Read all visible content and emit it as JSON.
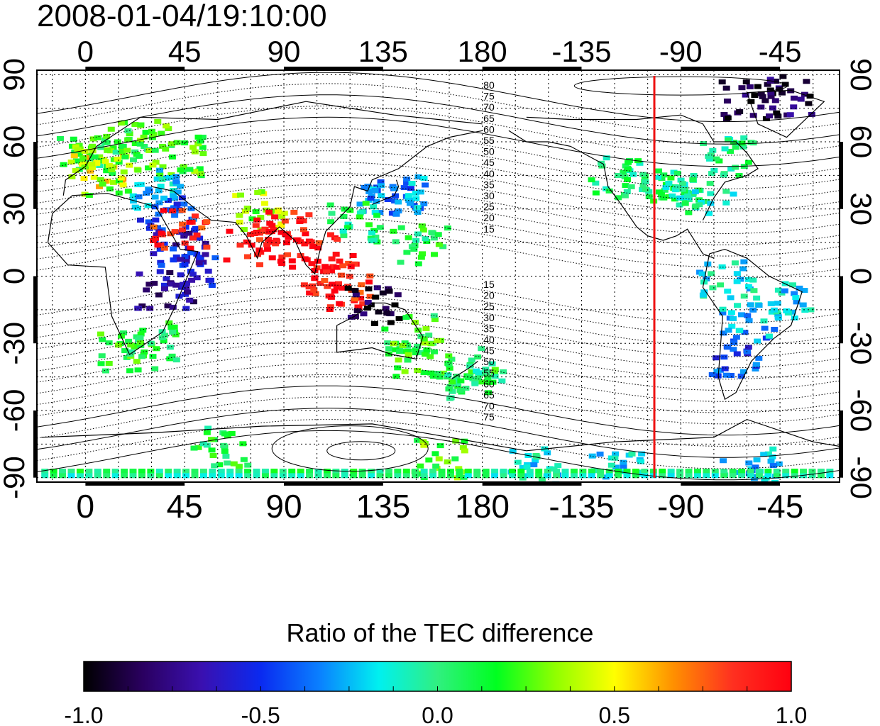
{
  "timestamp": "2008-01-04/19:10:00",
  "map": {
    "longitude_ticks": [
      "0",
      "45",
      "90",
      "135",
      "180",
      "-135",
      "-90",
      "-45"
    ],
    "longitude_tick_values": [
      0,
      45,
      90,
      135,
      180,
      225,
      270,
      315
    ],
    "latitude_ticks": [
      "90",
      "60",
      "30",
      "0",
      "-30",
      "-60",
      "-90"
    ],
    "latitude_tick_values": [
      90,
      60,
      30,
      0,
      -30,
      -60,
      -90
    ],
    "lon_range": [
      -22,
      342
    ],
    "lat_range": [
      -92,
      92
    ],
    "magnetic_latitude_labels_north": [
      "80",
      "75",
      "70",
      "65",
      "60",
      "55",
      "50",
      "45",
      "40",
      "35",
      "30",
      "25",
      "20",
      "15"
    ],
    "magnetic_latitude_labels_south": [
      "15",
      "20",
      "25",
      "30",
      "35",
      "40",
      "45",
      "50",
      "55",
      "60",
      "65",
      "70",
      "75"
    ],
    "terminator_longitude": 258,
    "colors": {
      "terminator": "#ee1111",
      "frame": "#000000",
      "grid": "#000000"
    }
  },
  "colorbar": {
    "title": "Ratio of the TEC difference",
    "ticks": [
      "-1.0",
      "-0.5",
      "0.0",
      "0.5",
      "1.0"
    ],
    "tick_values": [
      -1.0,
      -0.5,
      0.0,
      0.5,
      1.0
    ],
    "range": [
      -1.0,
      1.0
    ],
    "colormap": [
      "#000000",
      "#2a0060",
      "#3a10b0",
      "#0a2af0",
      "#0a80ff",
      "#00f0f0",
      "#30f080",
      "#00ff20",
      "#90ff00",
      "#ffff00",
      "#ff9000",
      "#ff3020",
      "#ff0010"
    ]
  },
  "chart_data": {
    "type": "heatmap",
    "title": "2008-01-04/19:10:00",
    "colorbar_label": "Ratio of the TEC difference",
    "x_axis_ticks": [
      0,
      45,
      90,
      135,
      180,
      -135,
      -90,
      -45
    ],
    "y_axis_ticks": [
      90,
      60,
      30,
      0,
      -30,
      -60,
      -90
    ],
    "value_range": [
      -1.0,
      1.0
    ],
    "cells": [
      {
        "lon": 0,
        "lat": 55,
        "v": 0.15
      },
      {
        "lon": 5,
        "lat": 50,
        "v": 0.5
      },
      {
        "lon": 15,
        "lat": 58,
        "v": 0.1
      },
      {
        "lon": 25,
        "lat": 62,
        "v": 0.2
      },
      {
        "lon": 40,
        "lat": 55,
        "v": 0.25
      },
      {
        "lon": 10,
        "lat": 45,
        "v": 0.35
      },
      {
        "lon": 30,
        "lat": 40,
        "v": -0.2
      },
      {
        "lon": 35,
        "lat": 30,
        "v": -0.4
      },
      {
        "lon": 40,
        "lat": 15,
        "v": -0.6
      },
      {
        "lon": 45,
        "lat": 5,
        "v": -0.55
      },
      {
        "lon": 42,
        "lat": 22,
        "v": 0.9
      },
      {
        "lon": 35,
        "lat": -5,
        "v": -0.7
      },
      {
        "lon": 28,
        "lat": -28,
        "v": 0.1
      },
      {
        "lon": 18,
        "lat": -33,
        "v": 0.15
      },
      {
        "lon": 78,
        "lat": 30,
        "v": 0.35
      },
      {
        "lon": 75,
        "lat": 15,
        "v": 0.95
      },
      {
        "lon": 88,
        "lat": 22,
        "v": 0.95
      },
      {
        "lon": 100,
        "lat": 12,
        "v": 0.95
      },
      {
        "lon": 110,
        "lat": 2,
        "v": 0.95
      },
      {
        "lon": 115,
        "lat": -5,
        "v": 0.9
      },
      {
        "lon": 135,
        "lat": 35,
        "v": -0.4
      },
      {
        "lon": 140,
        "lat": 38,
        "v": -0.3
      },
      {
        "lon": 120,
        "lat": 25,
        "v": 0.05
      },
      {
        "lon": 150,
        "lat": 15,
        "v": 0.1
      },
      {
        "lon": 130,
        "lat": -12,
        "v": -0.9
      },
      {
        "lon": 145,
        "lat": -25,
        "v": 0.15
      },
      {
        "lon": 150,
        "lat": -35,
        "v": 0.2
      },
      {
        "lon": 172,
        "lat": -40,
        "v": 0.1
      },
      {
        "lon": 175,
        "lat": -45,
        "v": 0.0
      },
      {
        "lon": 240,
        "lat": 45,
        "v": 0.0
      },
      {
        "lon": 255,
        "lat": 40,
        "v": 0.05
      },
      {
        "lon": 270,
        "lat": 38,
        "v": 0.0
      },
      {
        "lon": 280,
        "lat": 40,
        "v": -0.05
      },
      {
        "lon": 290,
        "lat": 55,
        "v": 0.0
      },
      {
        "lon": 300,
        "lat": 80,
        "v": -0.9
      },
      {
        "lon": 315,
        "lat": 82,
        "v": -0.85
      },
      {
        "lon": 295,
        "lat": -35,
        "v": -0.45
      },
      {
        "lon": 300,
        "lat": -20,
        "v": -0.25
      },
      {
        "lon": 315,
        "lat": -10,
        "v": -0.2
      },
      {
        "lon": 290,
        "lat": 0,
        "v": -0.15
      },
      {
        "lon": 60,
        "lat": -75,
        "v": 0.1
      },
      {
        "lon": 160,
        "lat": -80,
        "v": 0.25
      },
      {
        "lon": 200,
        "lat": -85,
        "v": -0.15
      },
      {
        "lon": 240,
        "lat": -87,
        "v": -0.2
      },
      {
        "lon": 300,
        "lat": -85,
        "v": -0.25
      }
    ]
  }
}
